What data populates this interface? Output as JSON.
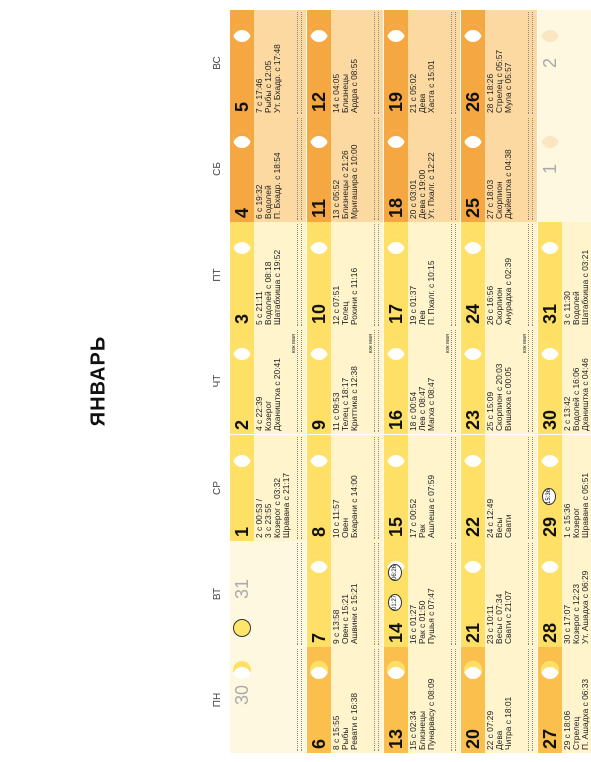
{
  "title": "ЯНВАРЬ",
  "weekdays": [
    "ПН",
    "ВТ",
    "СР",
    "ЧТ",
    "ПТ",
    "СБ",
    "ВС"
  ],
  "colors": {
    "light": "#fff4cc",
    "band_light": "#ffe066",
    "band_orange": "#fbbf4d",
    "band_dark": "#f4a94a",
    "weekend_dark": "#f5a742",
    "weekend_light": "#fcd9a1",
    "grey_day": "#fff8e1"
  },
  "days": [
    {
      "num": "30",
      "grey": true,
      "lines": []
    },
    {
      "num": "31",
      "grey": true,
      "lines": []
    },
    {
      "num": "1",
      "lines": [
        "2 с 00:53 /",
        "3 с 23:55",
        "Козерог с 03:32",
        "Шравана с 21:17"
      ]
    },
    {
      "num": "2",
      "lines": [
        "4 с 22:39",
        "Козерог",
        "Дхаништха с 20:41"
      ],
      "yuk": "юж мая"
    },
    {
      "num": "3",
      "lines": [
        "5 с 21:11",
        "Водолей с 08:18",
        "Шатабхиша с 19:52"
      ]
    },
    {
      "num": "4",
      "lines": [
        "6 с 19:32",
        "Водолей",
        "П. Бхадр. с 18:54"
      ]
    },
    {
      "num": "5",
      "lines": [
        "7 с 17:46",
        "Рыбы с 12:05",
        "Ут. Бхадр. с 17:48"
      ]
    },
    {
      "num": "6",
      "lines": [
        "8 с 15:55",
        "Рыбы",
        "Ревати с 16:38"
      ]
    },
    {
      "num": "7",
      "lines": [
        "9 с 13:58",
        "Овен с 15:21",
        "Ашвини с 15:21"
      ]
    },
    {
      "num": "8",
      "lines": [
        "10 с 11:57",
        "Овен",
        "Бхарани с 14:00"
      ]
    },
    {
      "num": "9",
      "lines": [
        "11 с 09:53",
        "Телец с 18:17",
        "Криттика с 12:38"
      ],
      "yuk": "юж мая"
    },
    {
      "num": "10",
      "lines": [
        "12 с 07:51",
        "Телец",
        "Рохини с 11:16"
      ]
    },
    {
      "num": "11",
      "lines": [
        "13 с 05:52",
        "Близнецы с 21:26",
        "Мригашира с 10:00"
      ]
    },
    {
      "num": "12",
      "lines": [
        "14 с 04:05",
        "Близнецы",
        "Ардра с 08:55"
      ]
    },
    {
      "num": "13",
      "lines": [
        "15 с 02:34",
        "Близнецы",
        "Пунарвасу с 08:09"
      ]
    },
    {
      "num": "14",
      "lines": [
        "16 с 01:27",
        "Рак с 01:50",
        "Пушья с 07:47"
      ],
      "badges": [
        "01:27",
        "06:26"
      ]
    },
    {
      "num": "15",
      "lines": [
        "17 с 00:52",
        "Рак",
        "Ашлеша с 07:59"
      ]
    },
    {
      "num": "16",
      "lines": [
        "18 с 00:54",
        "Лев с 08:47",
        "Магха с 08:47"
      ],
      "yuk": "юж мая"
    },
    {
      "num": "17",
      "lines": [
        "19 с 01:37",
        "Лев",
        "П. Пхалг. с 10:15"
      ]
    },
    {
      "num": "18",
      "lines": [
        "20 с 03:01",
        "Дева с 19:00",
        "Ут. Пхалг. с 12:22"
      ]
    },
    {
      "num": "19",
      "lines": [
        "21 с 05:02",
        "Дева",
        "Хаста с 15:01"
      ]
    },
    {
      "num": "20",
      "lines": [
        "22 с 07:29",
        "Дева",
        "Читра с 18:01"
      ]
    },
    {
      "num": "21",
      "lines": [
        "23 с 10:11",
        "Весы с 07:34",
        "Свати с 21:07"
      ]
    },
    {
      "num": "22",
      "lines": [
        "24 с 12:49",
        "Весы",
        "Свати"
      ]
    },
    {
      "num": "23",
      "lines": [
        "25 с 15:09",
        "Скорпион с 20:03",
        "Вишакха с 00:05"
      ],
      "yuk": "юж мая"
    },
    {
      "num": "24",
      "lines": [
        "26 с 16:56",
        "Скорпион",
        "Анурадха с 02:39"
      ]
    },
    {
      "num": "25",
      "lines": [
        "27 с 18:03",
        "Скорпион",
        "Джйештха с 04:38"
      ]
    },
    {
      "num": "26",
      "lines": [
        "28 с 18:26",
        "Стрелец с 05:57",
        "Мула с 05:57"
      ]
    },
    {
      "num": "27",
      "lines": [
        "29 с 18:06",
        "Стрелец",
        "П. Ашадха с 06:33"
      ]
    },
    {
      "num": "28",
      "lines": [
        "30 с 17:07",
        "Козерог с 12:23",
        "Ут. Ашадха с 06:29"
      ]
    },
    {
      "num": "29",
      "lines": [
        "1 с 15:36",
        "Козерог",
        "Шравана с 05:51"
      ],
      "badges": [
        "15:36"
      ]
    },
    {
      "num": "30",
      "lines": [
        "2 с 13:42",
        "Водолей с 16:06",
        "Дхаништха с 04:46"
      ],
      "yuk": "юж мая"
    },
    {
      "num": "31",
      "lines": [
        "3 с 11:30",
        "Водолей",
        "Шатабхиша с 03:21"
      ]
    },
    {
      "num": "1",
      "grey": true,
      "lines": []
    },
    {
      "num": "2",
      "grey": true,
      "lines": []
    }
  ]
}
